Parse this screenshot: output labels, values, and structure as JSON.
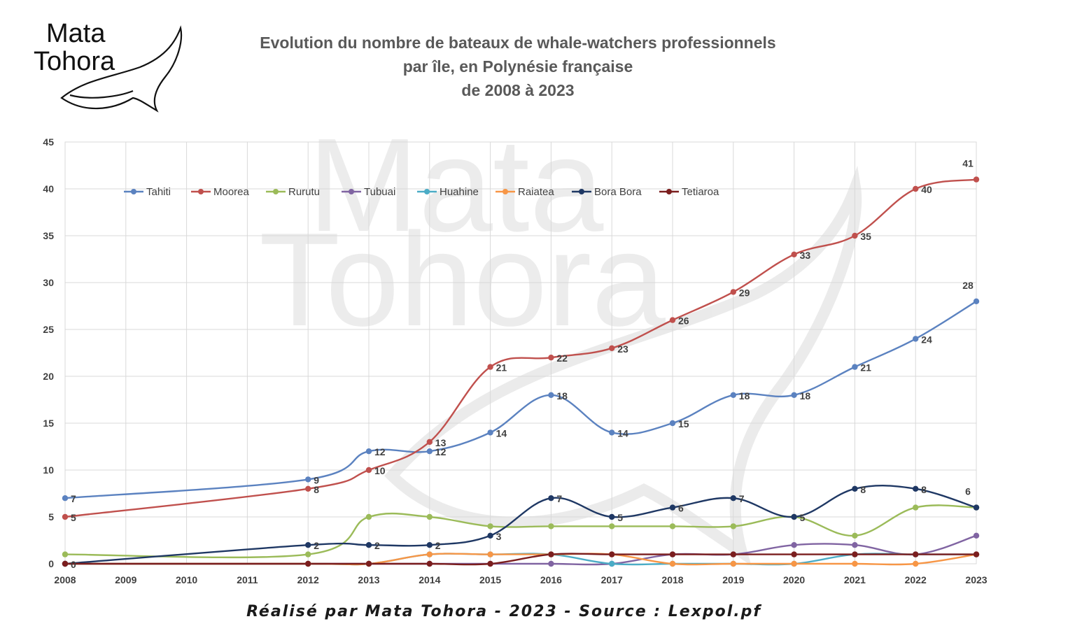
{
  "logo": {
    "line1": "Mata",
    "line2": "Tohora"
  },
  "watermark": {
    "line1": "Mata",
    "line2": "Tohora"
  },
  "title_lines": [
    "Evolution du nombre de bateaux de whale-watchers professionnels",
    "par île, en Polynésie française",
    "de 2008 à 2023"
  ],
  "credit": "Réalisé par Mata Tohora - 2023 - Source : Lexpol.pf",
  "chart_data": {
    "type": "line",
    "title": "Evolution du nombre de bateaux de whale-watchers professionnels par île, en Polynésie française de 2008 à 2023",
    "xlabel": "",
    "ylabel": "",
    "x": [
      "2008",
      "2009",
      "2010",
      "2011",
      "2012",
      "2013",
      "2014",
      "2015",
      "2016",
      "2017",
      "2018",
      "2019",
      "2020",
      "2021",
      "2022",
      "2023"
    ],
    "ylim": [
      0,
      45
    ],
    "yticks": [
      0,
      5,
      10,
      15,
      20,
      25,
      30,
      35,
      40,
      45
    ],
    "grid": true,
    "legend_position": "top-left inside plot",
    "series": [
      {
        "name": "Tahiti",
        "color": "#5b82c0",
        "show_labels": true,
        "points": [
          [
            "2008",
            7
          ],
          [
            "2012",
            9
          ],
          [
            "2013",
            12
          ],
          [
            "2014",
            12
          ],
          [
            "2015",
            14
          ],
          [
            "2016",
            18
          ],
          [
            "2017",
            14
          ],
          [
            "2018",
            15
          ],
          [
            "2019",
            18
          ],
          [
            "2020",
            18
          ],
          [
            "2021",
            21
          ],
          [
            "2022",
            24
          ],
          [
            "2023",
            28
          ]
        ]
      },
      {
        "name": "Moorea",
        "color": "#c0504d",
        "show_labels": true,
        "points": [
          [
            "2008",
            5
          ],
          [
            "2012",
            8
          ],
          [
            "2013",
            10
          ],
          [
            "2014",
            13
          ],
          [
            "2015",
            21
          ],
          [
            "2016",
            22
          ],
          [
            "2017",
            23
          ],
          [
            "2018",
            26
          ],
          [
            "2019",
            29
          ],
          [
            "2020",
            33
          ],
          [
            "2021",
            35
          ],
          [
            "2022",
            40
          ],
          [
            "2023",
            41
          ]
        ]
      },
      {
        "name": "Rurutu",
        "color": "#9bbb59",
        "show_labels": false,
        "points": [
          [
            "2008",
            1
          ],
          [
            "2012",
            1
          ],
          [
            "2013",
            5
          ],
          [
            "2014",
            5
          ],
          [
            "2015",
            4
          ],
          [
            "2016",
            4
          ],
          [
            "2017",
            4
          ],
          [
            "2018",
            4
          ],
          [
            "2019",
            4
          ],
          [
            "2020",
            5
          ],
          [
            "2021",
            3
          ],
          [
            "2022",
            6
          ],
          [
            "2023",
            6
          ]
        ]
      },
      {
        "name": "Tubuai",
        "color": "#8064a2",
        "show_labels": false,
        "points": [
          [
            "2008",
            0
          ],
          [
            "2012",
            0
          ],
          [
            "2013",
            0
          ],
          [
            "2014",
            0
          ],
          [
            "2015",
            0
          ],
          [
            "2016",
            0
          ],
          [
            "2017",
            0
          ],
          [
            "2018",
            1
          ],
          [
            "2019",
            1
          ],
          [
            "2020",
            2
          ],
          [
            "2021",
            2
          ],
          [
            "2022",
            1
          ],
          [
            "2023",
            3
          ]
        ]
      },
      {
        "name": "Huahine",
        "color": "#4bacc6",
        "show_labels": false,
        "points": [
          [
            "2008",
            0
          ],
          [
            "2012",
            0
          ],
          [
            "2013",
            0
          ],
          [
            "2014",
            1
          ],
          [
            "2015",
            1
          ],
          [
            "2016",
            1
          ],
          [
            "2017",
            0
          ],
          [
            "2018",
            0
          ],
          [
            "2019",
            0
          ],
          [
            "2020",
            0
          ],
          [
            "2021",
            1
          ],
          [
            "2022",
            1
          ],
          [
            "2023",
            1
          ]
        ]
      },
      {
        "name": "Raiatea",
        "color": "#f79646",
        "show_labels": false,
        "points": [
          [
            "2008",
            0
          ],
          [
            "2012",
            0
          ],
          [
            "2013",
            0
          ],
          [
            "2014",
            1
          ],
          [
            "2015",
            1
          ],
          [
            "2016",
            1
          ],
          [
            "2017",
            1
          ],
          [
            "2018",
            0
          ],
          [
            "2019",
            0
          ],
          [
            "2020",
            0
          ],
          [
            "2021",
            0
          ],
          [
            "2022",
            0
          ],
          [
            "2023",
            1
          ]
        ]
      },
      {
        "name": "Bora Bora",
        "color": "#1f3864",
        "show_labels": true,
        "points": [
          [
            "2008",
            0
          ],
          [
            "2012",
            2
          ],
          [
            "2013",
            2
          ],
          [
            "2014",
            2
          ],
          [
            "2015",
            3
          ],
          [
            "2016",
            7
          ],
          [
            "2017",
            5
          ],
          [
            "2018",
            6
          ],
          [
            "2019",
            7
          ],
          [
            "2020",
            5
          ],
          [
            "2021",
            8
          ],
          [
            "2022",
            8
          ],
          [
            "2023",
            6
          ]
        ]
      },
      {
        "name": "Tetiaroa",
        "color": "#7b1e1e",
        "show_labels": false,
        "points": [
          [
            "2008",
            0
          ],
          [
            "2012",
            0
          ],
          [
            "2013",
            0
          ],
          [
            "2014",
            0
          ],
          [
            "2015",
            0
          ],
          [
            "2016",
            1
          ],
          [
            "2017",
            1
          ],
          [
            "2018",
            1
          ],
          [
            "2019",
            1
          ],
          [
            "2020",
            1
          ],
          [
            "2021",
            1
          ],
          [
            "2022",
            1
          ],
          [
            "2023",
            1
          ]
        ]
      }
    ]
  }
}
